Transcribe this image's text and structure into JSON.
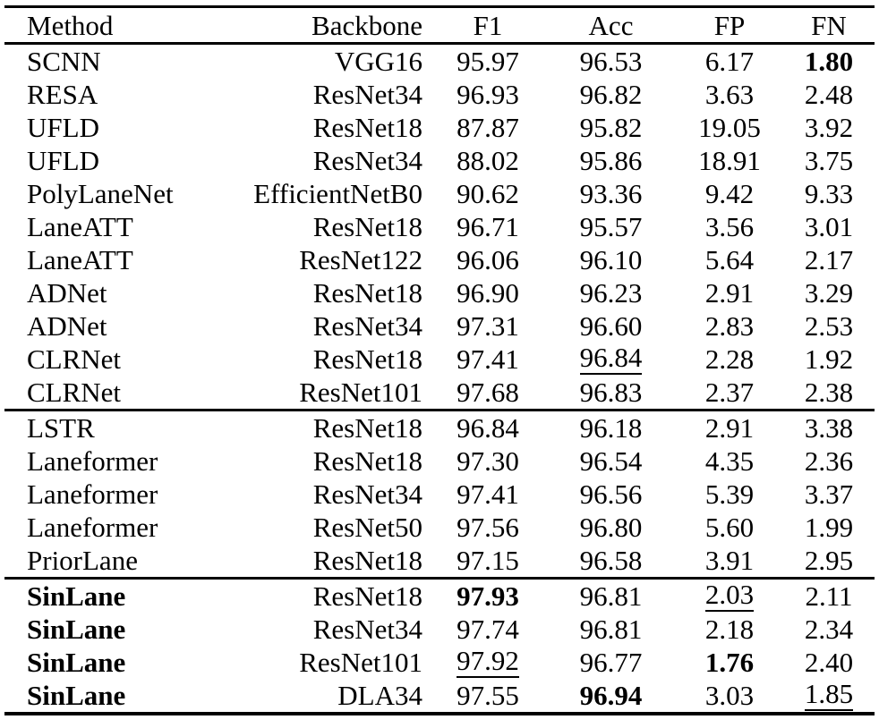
{
  "page": {
    "background": "#ffffff",
    "text_color": "#000000",
    "rule_color": "#000000"
  },
  "table": {
    "header": [
      {
        "label": "Method",
        "align": "left"
      },
      {
        "label": "Backbone",
        "align": "right"
      },
      {
        "label": "F1",
        "align": "center"
      },
      {
        "label": "Acc",
        "align": "center"
      },
      {
        "label": "FP",
        "align": "center"
      },
      {
        "label": "FN",
        "align": "center"
      }
    ],
    "groups": [
      {
        "rows": [
          [
            {
              "t": "SCNN"
            },
            {
              "t": "VGG16"
            },
            {
              "t": "95.97"
            },
            {
              "t": "96.53"
            },
            {
              "t": "6.17"
            },
            {
              "t": "1.80",
              "b": true
            }
          ],
          [
            {
              "t": "RESA"
            },
            {
              "t": "ResNet34"
            },
            {
              "t": "96.93"
            },
            {
              "t": "96.82"
            },
            {
              "t": "3.63"
            },
            {
              "t": "2.48"
            }
          ],
          [
            {
              "t": "UFLD"
            },
            {
              "t": "ResNet18"
            },
            {
              "t": "87.87"
            },
            {
              "t": "95.82"
            },
            {
              "t": "19.05"
            },
            {
              "t": "3.92"
            }
          ],
          [
            {
              "t": "UFLD"
            },
            {
              "t": "ResNet34"
            },
            {
              "t": "88.02"
            },
            {
              "t": "95.86"
            },
            {
              "t": "18.91"
            },
            {
              "t": "3.75"
            }
          ],
          [
            {
              "t": "PolyLaneNet"
            },
            {
              "t": "EfficientNetB0"
            },
            {
              "t": "90.62"
            },
            {
              "t": "93.36"
            },
            {
              "t": "9.42"
            },
            {
              "t": "9.33"
            }
          ],
          [
            {
              "t": "LaneATT"
            },
            {
              "t": "ResNet18"
            },
            {
              "t": "96.71"
            },
            {
              "t": "95.57"
            },
            {
              "t": "3.56"
            },
            {
              "t": "3.01"
            }
          ],
          [
            {
              "t": "LaneATT"
            },
            {
              "t": "ResNet122"
            },
            {
              "t": "96.06"
            },
            {
              "t": "96.10"
            },
            {
              "t": "5.64"
            },
            {
              "t": "2.17"
            }
          ],
          [
            {
              "t": "ADNet"
            },
            {
              "t": "ResNet18"
            },
            {
              "t": "96.90"
            },
            {
              "t": "96.23"
            },
            {
              "t": "2.91"
            },
            {
              "t": "3.29"
            }
          ],
          [
            {
              "t": "ADNet"
            },
            {
              "t": "ResNet34"
            },
            {
              "t": "97.31"
            },
            {
              "t": "96.60"
            },
            {
              "t": "2.83"
            },
            {
              "t": "2.53"
            }
          ],
          [
            {
              "t": "CLRNet"
            },
            {
              "t": "ResNet18"
            },
            {
              "t": "97.41"
            },
            {
              "t": "96.84",
              "u": true
            },
            {
              "t": "2.28"
            },
            {
              "t": "1.92"
            }
          ],
          [
            {
              "t": "CLRNet"
            },
            {
              "t": "ResNet101"
            },
            {
              "t": "97.68"
            },
            {
              "t": "96.83"
            },
            {
              "t": "2.37"
            },
            {
              "t": "2.38"
            }
          ]
        ]
      },
      {
        "rows": [
          [
            {
              "t": "LSTR"
            },
            {
              "t": "ResNet18"
            },
            {
              "t": "96.84"
            },
            {
              "t": "96.18"
            },
            {
              "t": "2.91"
            },
            {
              "t": "3.38"
            }
          ],
          [
            {
              "t": "Laneformer"
            },
            {
              "t": "ResNet18"
            },
            {
              "t": "97.30"
            },
            {
              "t": "96.54"
            },
            {
              "t": "4.35"
            },
            {
              "t": "2.36"
            }
          ],
          [
            {
              "t": "Laneformer"
            },
            {
              "t": "ResNet34"
            },
            {
              "t": "97.41"
            },
            {
              "t": "96.56"
            },
            {
              "t": "5.39"
            },
            {
              "t": "3.37"
            }
          ],
          [
            {
              "t": "Laneformer"
            },
            {
              "t": "ResNet50"
            },
            {
              "t": "97.56"
            },
            {
              "t": "96.80"
            },
            {
              "t": "5.60"
            },
            {
              "t": "1.99"
            }
          ],
          [
            {
              "t": "PriorLane"
            },
            {
              "t": "ResNet18"
            },
            {
              "t": "97.15"
            },
            {
              "t": "96.58"
            },
            {
              "t": "3.91"
            },
            {
              "t": "2.95"
            }
          ]
        ]
      },
      {
        "rows": [
          [
            {
              "t": "SinLane",
              "b": true
            },
            {
              "t": "ResNet18"
            },
            {
              "t": "97.93",
              "b": true
            },
            {
              "t": "96.81"
            },
            {
              "t": "2.03",
              "u": true
            },
            {
              "t": "2.11"
            }
          ],
          [
            {
              "t": "SinLane",
              "b": true
            },
            {
              "t": "ResNet34"
            },
            {
              "t": "97.74"
            },
            {
              "t": "96.81"
            },
            {
              "t": "2.18"
            },
            {
              "t": "2.34"
            }
          ],
          [
            {
              "t": "SinLane",
              "b": true
            },
            {
              "t": "ResNet101"
            },
            {
              "t": "97.92",
              "u": true
            },
            {
              "t": "96.77"
            },
            {
              "t": "1.76",
              "b": true
            },
            {
              "t": "2.40"
            }
          ],
          [
            {
              "t": "SinLane",
              "b": true
            },
            {
              "t": "DLA34"
            },
            {
              "t": "97.55"
            },
            {
              "t": "96.94",
              "b": true
            },
            {
              "t": "3.03"
            },
            {
              "t": "1.85",
              "u": true
            }
          ]
        ]
      }
    ]
  }
}
